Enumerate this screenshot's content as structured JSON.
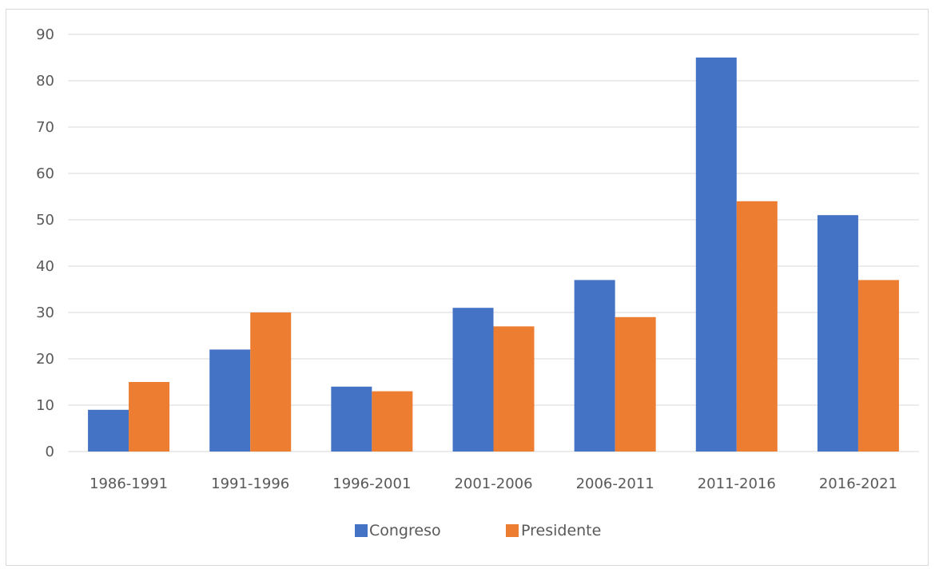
{
  "chart_data": {
    "type": "bar",
    "categories": [
      "1986-1991",
      "1991-1996",
      "1996-2001",
      "2001-2006",
      "2006-2011",
      "2011-2016",
      "2016-2021"
    ],
    "series": [
      {
        "name": "Congreso",
        "values": [
          9,
          22,
          14,
          31,
          37,
          85,
          51
        ],
        "color": "#4472c4"
      },
      {
        "name": "Presidente",
        "values": [
          15,
          30,
          13,
          27,
          29,
          54,
          37
        ],
        "color": "#ed7d31"
      }
    ],
    "title": "",
    "xlabel": "",
    "ylabel": "",
    "ylim": [
      0,
      90
    ],
    "yticks": [
      "0",
      "10",
      "20",
      "30",
      "40",
      "50",
      "60",
      "70",
      "80",
      "90"
    ],
    "grid": true,
    "legend_position": "bottom"
  }
}
